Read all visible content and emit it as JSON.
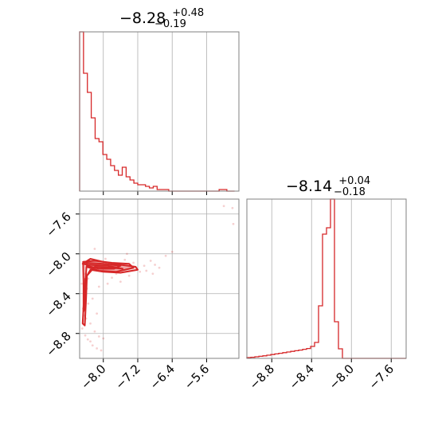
{
  "chart_data": {
    "type": "corner",
    "color": "#d62728",
    "grid": true,
    "panels": [
      {
        "name": "hist-param1",
        "type": "histogram",
        "title": {
          "main": "−8.28",
          "sup": "+0.48",
          "sub": "−0.19"
        },
        "xlim": [
          -8.55,
          -4.85
        ],
        "ylim": [
          0,
          1.0
        ],
        "grid_x": [
          -8.0,
          -7.2,
          -6.4,
          -5.6
        ],
        "bin_edges": [
          -8.55,
          -8.46,
          -8.37,
          -8.28,
          -8.19,
          -8.1,
          -8.01,
          -7.92,
          -7.83,
          -7.74,
          -7.65,
          -7.56,
          -7.47,
          -7.38,
          -7.29,
          -7.2,
          -7.11,
          -7.02,
          -6.93,
          -6.84,
          -6.75,
          -6.66,
          -6.57,
          -6.48,
          -6.39,
          -6.3,
          -6.21,
          -6.12,
          -6.03,
          -5.94,
          -5.85,
          -5.76,
          -5.67,
          -5.58,
          -5.49,
          -5.4,
          -5.31,
          -5.22,
          -5.13,
          -5.04,
          -4.95
        ],
        "heights": [
          1.0,
          0.74,
          0.62,
          0.46,
          0.33,
          0.31,
          0.23,
          0.2,
          0.16,
          0.13,
          0.1,
          0.15,
          0.09,
          0.07,
          0.05,
          0.04,
          0.04,
          0.03,
          0.02,
          0.03,
          0.01,
          0.01,
          0.01,
          0.0,
          0.0,
          0.0,
          0.0,
          0.0,
          0.0,
          0.0,
          0.0,
          0.0,
          0.0,
          0.0,
          0.0,
          0.0,
          0.01,
          0.01,
          0.0,
          0.0
        ]
      },
      {
        "name": "hist-param2",
        "type": "histogram",
        "title": {
          "main": "−8.14",
          "sup": "+0.04",
          "sub": "−0.18"
        },
        "xlim": [
          -9.05,
          -7.45
        ],
        "ylim": [
          0,
          1.0
        ],
        "grid_x": [
          -8.8,
          -8.4,
          -8.0,
          -7.6
        ],
        "x_ticks": [
          "−8.8",
          "−8.4",
          "−8.0",
          "−7.6"
        ],
        "bin_edges": [
          -9.05,
          -9.01,
          -8.97,
          -8.93,
          -8.89,
          -8.85,
          -8.81,
          -8.77,
          -8.73,
          -8.69,
          -8.65,
          -8.61,
          -8.57,
          -8.53,
          -8.49,
          -8.45,
          -8.41,
          -8.37,
          -8.33,
          -8.29,
          -8.25,
          -8.21,
          -8.17,
          -8.13,
          -8.09,
          -8.05,
          -8.01,
          -7.97,
          -7.93,
          -7.89,
          -7.85,
          -7.81,
          -7.77,
          -7.73,
          -7.69,
          -7.65,
          -7.61,
          -7.57,
          -7.53,
          -7.49,
          -7.45
        ],
        "heights": [
          0.005,
          0.007,
          0.01,
          0.013,
          0.016,
          0.02,
          0.024,
          0.028,
          0.032,
          0.036,
          0.04,
          0.044,
          0.048,
          0.052,
          0.057,
          0.062,
          0.075,
          0.1,
          0.33,
          0.78,
          0.82,
          1.0,
          0.23,
          0.06,
          0.0,
          0.0,
          0.0,
          0.0,
          0.0,
          0.0,
          0.0,
          0.0,
          0.0,
          0.0,
          0.0,
          0.0,
          0.0,
          0.0,
          0.0,
          0.0
        ]
      },
      {
        "name": "scatter-2d",
        "type": "scatter",
        "xlim": [
          -8.55,
          -4.85
        ],
        "ylim": [
          -9.05,
          -7.45
        ],
        "grid_x": [
          -8.0,
          -7.2,
          -6.4,
          -5.6
        ],
        "grid_y": [
          -7.6,
          -8.0,
          -8.4,
          -8.8
        ],
        "x_ticks": [
          "−8.0",
          "−7.2",
          "−6.4",
          "−5.6"
        ],
        "y_ticks": [
          "−7.6",
          "−8.0",
          "−8.4",
          "−8.8"
        ],
        "contours": [
          [
            [
              -8.48,
              -8.1
            ],
            [
              -8.3,
              -8.05
            ],
            [
              -8.0,
              -8.08
            ],
            [
              -7.6,
              -8.11
            ],
            [
              -7.25,
              -8.13
            ],
            [
              -7.2,
              -8.16
            ],
            [
              -7.6,
              -8.19
            ],
            [
              -8.0,
              -8.18
            ],
            [
              -8.3,
              -8.16
            ],
            [
              -8.42,
              -8.25
            ],
            [
              -8.45,
              -8.45
            ],
            [
              -8.48,
              -8.7
            ],
            [
              -8.43,
              -8.72
            ],
            [
              -8.4,
              -8.45
            ],
            [
              -8.38,
              -8.22
            ],
            [
              -8.2,
              -8.13
            ],
            [
              -7.8,
              -8.14
            ],
            [
              -7.55,
              -8.15
            ],
            [
              -7.9,
              -8.12
            ],
            [
              -8.35,
              -8.11
            ],
            [
              -8.48,
              -8.1
            ]
          ],
          [
            [
              -8.47,
              -8.08
            ],
            [
              -8.2,
              -8.07
            ],
            [
              -7.8,
              -8.09
            ],
            [
              -7.4,
              -8.1
            ],
            [
              -7.3,
              -8.14
            ],
            [
              -7.7,
              -8.18
            ],
            [
              -8.1,
              -8.17
            ],
            [
              -8.39,
              -8.13
            ],
            [
              -8.42,
              -8.3
            ],
            [
              -8.43,
              -8.55
            ],
            [
              -8.46,
              -8.58
            ],
            [
              -8.46,
              -8.3
            ],
            [
              -8.47,
              -8.08
            ]
          ],
          [
            [
              -8.4,
              -8.09
            ],
            [
              -8.0,
              -8.1
            ],
            [
              -7.6,
              -8.12
            ],
            [
              -7.75,
              -8.15
            ],
            [
              -8.1,
              -8.15
            ],
            [
              -8.38,
              -8.12
            ],
            [
              -8.4,
              -8.09
            ]
          ]
        ],
        "points": [
          [
            -8.5,
            -8.3
          ],
          [
            -8.47,
            -8.55
          ],
          [
            -8.44,
            -8.62
          ],
          [
            -8.49,
            -8.75
          ],
          [
            -8.42,
            -8.82
          ],
          [
            -8.36,
            -8.86
          ],
          [
            -8.3,
            -8.88
          ],
          [
            -8.25,
            -8.92
          ],
          [
            -8.15,
            -8.95
          ],
          [
            -8.05,
            -8.97
          ],
          [
            -8.45,
            -8.4
          ],
          [
            -8.35,
            -8.5
          ],
          [
            -8.4,
            -8.65
          ],
          [
            -8.3,
            -8.7
          ],
          [
            -8.2,
            -8.78
          ],
          [
            -8.1,
            -8.83
          ],
          [
            -8.0,
            -8.85
          ],
          [
            -8.38,
            -8.35
          ],
          [
            -8.25,
            -8.45
          ],
          [
            -8.15,
            -8.6
          ],
          [
            -8.45,
            -8.2
          ],
          [
            -8.35,
            -8.25
          ],
          [
            -7.95,
            -8.05
          ],
          [
            -7.7,
            -8.1
          ],
          [
            -7.5,
            -8.06
          ],
          [
            -7.3,
            -8.09
          ],
          [
            -7.05,
            -8.12
          ],
          [
            -6.9,
            -8.07
          ],
          [
            -6.8,
            -8.11
          ],
          [
            -6.7,
            -8.14
          ],
          [
            -6.55,
            -8.02
          ],
          [
            -6.4,
            -7.98
          ],
          [
            -7.15,
            -8.18
          ],
          [
            -7.0,
            -8.17
          ],
          [
            -6.85,
            -8.2
          ],
          [
            -7.4,
            -8.22
          ],
          [
            -7.8,
            -8.24
          ],
          [
            -7.9,
            -8.3
          ],
          [
            -7.6,
            -8.28
          ],
          [
            -8.1,
            -8.33
          ],
          [
            -7.7,
            -8.2
          ],
          [
            -5.2,
            -7.52
          ],
          [
            -5.0,
            -7.54
          ],
          [
            -4.98,
            -7.7
          ],
          [
            -8.2,
            -7.95
          ],
          [
            -7.45,
            -8.0
          ]
        ]
      }
    ]
  }
}
